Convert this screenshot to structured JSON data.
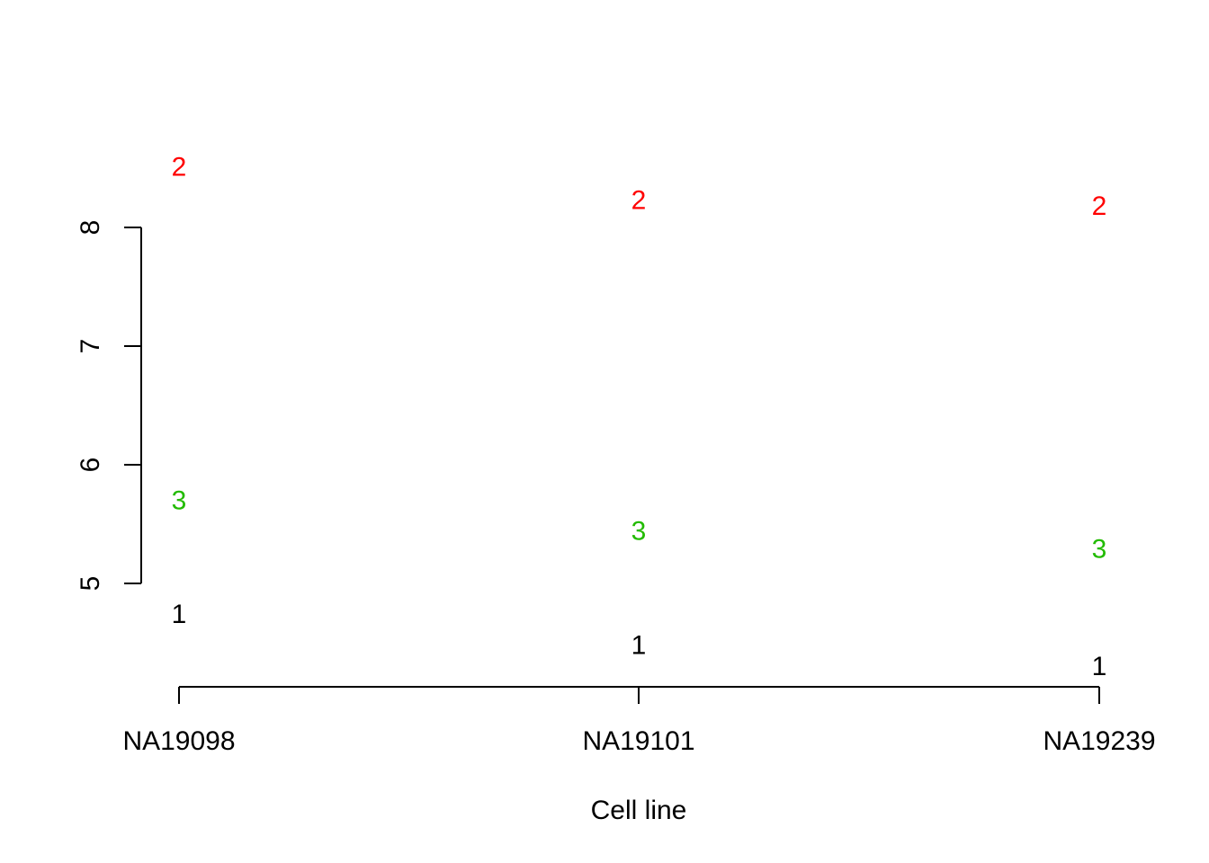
{
  "chart_data": {
    "type": "scatter",
    "title": "",
    "xlabel": "Cell line",
    "ylabel": "",
    "categories": [
      "NA19098",
      "NA19101",
      "NA19239"
    ],
    "ylim": [
      4.2,
      8.5
    ],
    "yticks": [
      5,
      6,
      7,
      8
    ],
    "grid": false,
    "legend": "none",
    "series": [
      {
        "label": "1",
        "color": "#000000",
        "values": [
          4.75,
          4.49,
          4.31
        ]
      },
      {
        "label": "2",
        "color": "#ff0000",
        "values": [
          8.52,
          8.24,
          8.19
        ]
      },
      {
        "label": "3",
        "color": "#22bb00",
        "values": [
          5.71,
          5.45,
          5.3
        ]
      }
    ]
  }
}
